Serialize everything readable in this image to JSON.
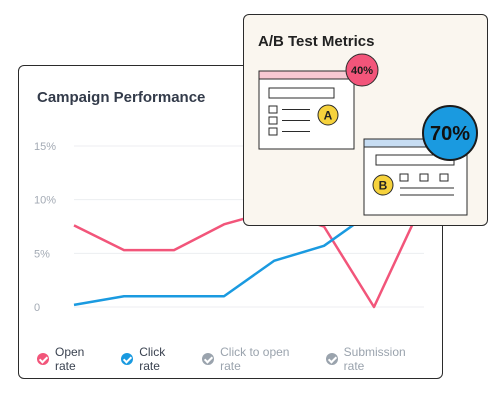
{
  "campaign": {
    "title": "Campaign Performance",
    "legend": [
      {
        "label": "Open rate",
        "color": "#f2557a",
        "active": true
      },
      {
        "label": "Click rate",
        "color": "#1a9ae0",
        "active": true
      },
      {
        "label": "Click to open rate",
        "color": "#9aa3ad",
        "active": false
      },
      {
        "label": "Submission rate",
        "color": "#9aa3ad",
        "active": false
      }
    ]
  },
  "ab_test": {
    "title": "A/B Test Metrics",
    "variant_a": {
      "letter": "A",
      "percent": "40%"
    },
    "variant_b": {
      "letter": "B",
      "percent": "70%"
    },
    "badge_colors": {
      "a": "#f2557a",
      "b": "#1a9ae0",
      "letter_bg": "#f6d23c"
    }
  },
  "chart_data": {
    "type": "line",
    "ytick_labels": [
      "15%",
      "10%",
      "5%",
      "0"
    ],
    "ylim": [
      0,
      15
    ],
    "x": [
      0,
      1,
      2,
      3,
      4,
      5,
      6,
      7
    ],
    "series": [
      {
        "name": "Open rate",
        "color": "#f2557a",
        "values": [
          7.6,
          5.3,
          5.3,
          7.7,
          9.0,
          7.5,
          0.0,
          10.0
        ]
      },
      {
        "name": "Click rate",
        "color": "#1a9ae0",
        "values": [
          0.2,
          1.0,
          1.0,
          1.0,
          4.3,
          5.7,
          9.0,
          10.0
        ]
      }
    ]
  }
}
